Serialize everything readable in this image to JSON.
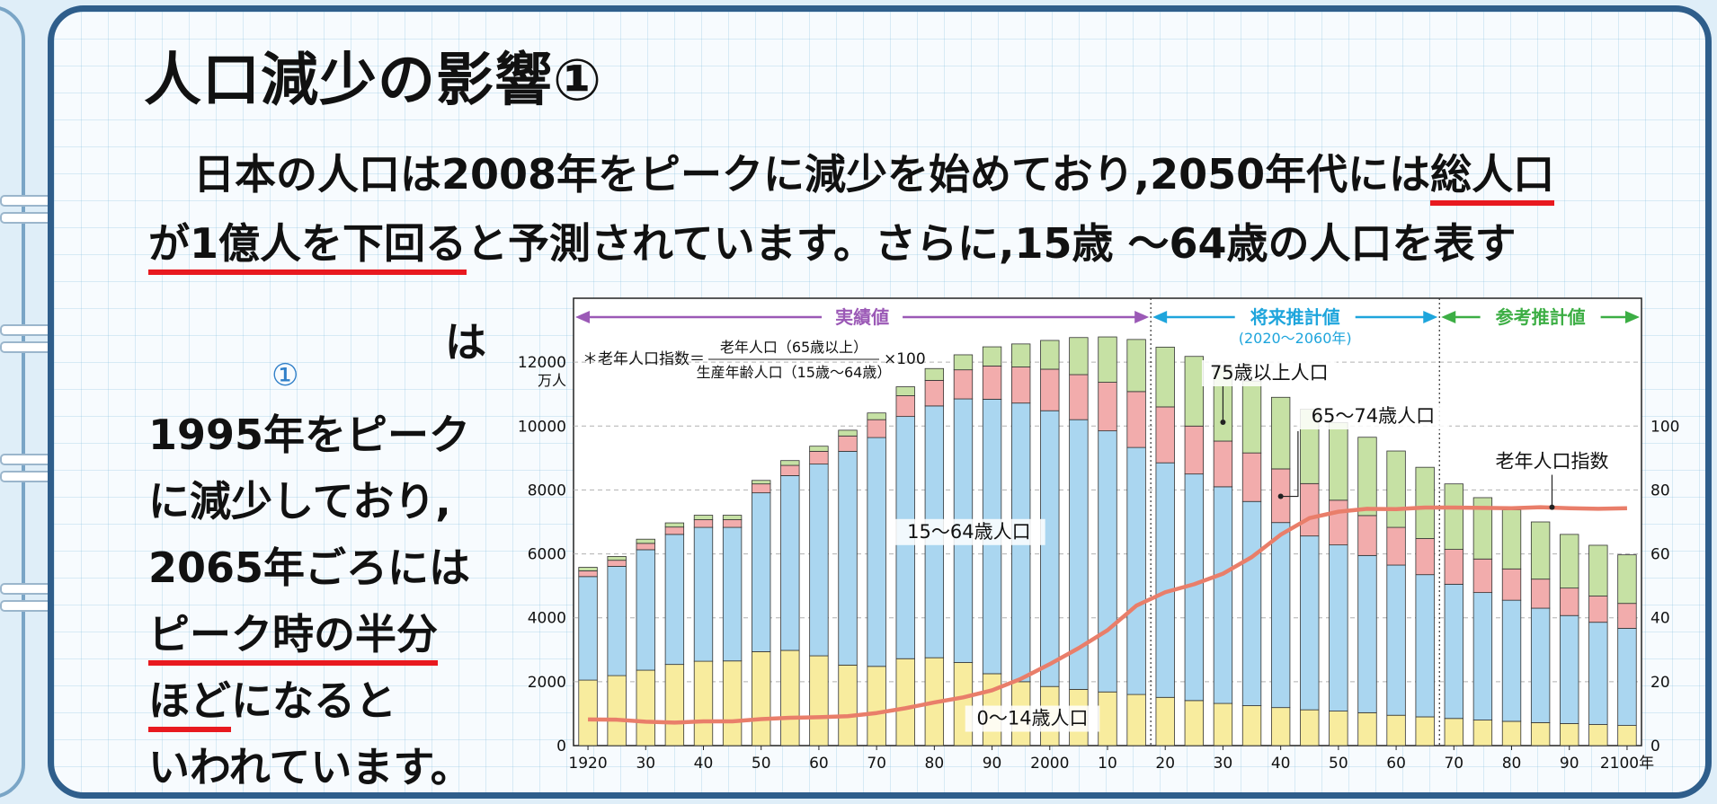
{
  "title": "人口減少の影響①",
  "paragraph": {
    "line1_a": "日本の人口は2008年をピークに減少を始めており,2050年代には",
    "line1_b": "総人口",
    "line2_a": "が1億人を下回る",
    "line2_b": "と予測されています。さらに,15歳 ～64歳の人口を表す"
  },
  "left_text": {
    "ha": "は",
    "circle_1": "①",
    "l1": "1995年をピーク",
    "l2": "に減少しており,",
    "l3": "2065年ごろには",
    "l4": "ピーク時の半分",
    "l5a": "ほど",
    "l5b": "になると",
    "l6": "いわれています。"
  },
  "colors": {
    "age0_14": "#f8ec9e",
    "age15_64": "#aad6f0",
    "age65_74": "#f2acac",
    "age75plus": "#c6e1a4",
    "index_line": "#e97e6a",
    "actual": "#9b59b6",
    "future": "#1ea5dc",
    "reference": "#3cae44",
    "underline": "#e8191f",
    "frame": "#2f5e8b"
  },
  "chart_data": {
    "type": "bar",
    "stacked": true,
    "x": [
      1920,
      1925,
      1930,
      1935,
      1940,
      1945,
      1950,
      1955,
      1960,
      1965,
      1970,
      1975,
      1980,
      1985,
      1990,
      1995,
      2000,
      2005,
      2010,
      2015,
      2020,
      2025,
      2030,
      2035,
      2040,
      2045,
      2050,
      2055,
      2060,
      2065,
      2070,
      2075,
      2080,
      2085,
      2090,
      2095,
      2100
    ],
    "x_tick_labels": [
      "1920",
      "30",
      "40",
      "50",
      "60",
      "70",
      "80",
      "90",
      "2000",
      "10",
      "20",
      "30",
      "40",
      "50",
      "60",
      "70",
      "80",
      "90",
      "2100年"
    ],
    "x_tick_values": [
      1920,
      1930,
      1940,
      1950,
      1960,
      1970,
      1980,
      1990,
      2000,
      2010,
      2020,
      2030,
      2040,
      2050,
      2060,
      2070,
      2080,
      2090,
      2100
    ],
    "series": [
      {
        "name": "0～14歳人口",
        "color_key": "age0_14",
        "values": [
          2050,
          2190,
          2360,
          2540,
          2640,
          2650,
          2940,
          2980,
          2810,
          2520,
          2480,
          2720,
          2750,
          2600,
          2250,
          2000,
          1850,
          1760,
          1680,
          1600,
          1510,
          1410,
          1320,
          1250,
          1190,
          1120,
          1080,
          1030,
          950,
          900,
          850,
          800,
          760,
          720,
          690,
          660,
          630
        ]
      },
      {
        "name": "15～64歳人口",
        "color_key": "age15_64",
        "values": [
          3240,
          3420,
          3770,
          4070,
          4190,
          4180,
          4970,
          5470,
          6000,
          6690,
          7160,
          7580,
          7880,
          8250,
          8590,
          8720,
          8630,
          8440,
          8170,
          7730,
          7340,
          7090,
          6780,
          6390,
          5790,
          5440,
          5200,
          4920,
          4700,
          4450,
          4200,
          3990,
          3790,
          3580,
          3380,
          3200,
          3040
        ]
      },
      {
        "name": "65～74歳人口",
        "color_key": "age65_74",
        "values": [
          180,
          190,
          200,
          230,
          240,
          240,
          280,
          320,
          400,
          480,
          560,
          650,
          800,
          910,
          1040,
          1130,
          1300,
          1410,
          1520,
          1750,
          1750,
          1500,
          1430,
          1520,
          1680,
          1640,
          1400,
          1250,
          1180,
          1130,
          1090,
          1050,
          980,
          910,
          860,
          820,
          780
        ]
      },
      {
        "name": "75歳以上人口",
        "color_key": "age75plus",
        "values": [
          110,
          120,
          130,
          130,
          140,
          140,
          110,
          150,
          160,
          180,
          210,
          280,
          370,
          470,
          600,
          720,
          900,
          1160,
          1420,
          1630,
          1870,
          2180,
          2290,
          2250,
          2240,
          2330,
          2430,
          2450,
          2390,
          2230,
          2050,
          1920,
          1850,
          1790,
          1680,
          1590,
          1520
        ]
      }
    ],
    "index_line": {
      "name": "老年人口指数",
      "values": [
        8.2,
        8.1,
        7.5,
        7.2,
        7.6,
        7.6,
        8.3,
        8.7,
        8.9,
        9.2,
        10.2,
        11.7,
        13.5,
        15.1,
        17.3,
        20.9,
        25.5,
        30.5,
        36.1,
        43.8,
        48.0,
        50.5,
        53.8,
        59.0,
        66.0,
        71.2,
        73.2,
        74.1,
        74.0,
        74.5,
        74.5,
        74.4,
        74.3,
        74.6,
        74.3,
        74.1,
        74.3
      ]
    },
    "ylim_left": [
      0,
      14000
    ],
    "yticks_left": [
      0,
      2000,
      4000,
      6000,
      8000,
      10000,
      12000
    ],
    "ylabel_left": "万人",
    "ylim_right": [
      0,
      140
    ],
    "yticks_right": [
      0,
      20,
      40,
      60,
      80,
      100
    ],
    "grid_lines": [
      2000,
      4000,
      6000,
      8000,
      10000,
      12000
    ],
    "periods": [
      {
        "label": "実績値",
        "sub": "",
        "color_key": "actual"
      },
      {
        "label": "将来推計値",
        "sub": "(2020～2060年)",
        "color_key": "future"
      },
      {
        "label": "参考推計値",
        "sub": "",
        "color_key": "reference"
      }
    ],
    "formula": {
      "prefix": "＊老年人口指数＝",
      "numerator": "老年人口（65歳以上）",
      "denominator": "生産年齢人口（15歳～64歳）",
      "suffix": "×100"
    },
    "annotations": {
      "age75plus": "75歳以上人口",
      "age65_74": "65～74歳人口",
      "age15_64": "15～64歳人口",
      "age0_14": "0～14歳人口",
      "index": "老年人口指数"
    }
  }
}
